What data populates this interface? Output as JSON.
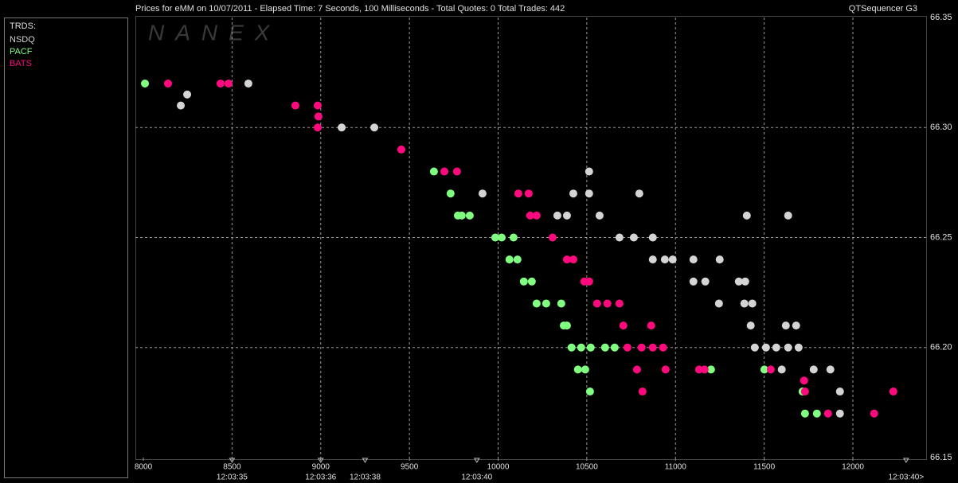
{
  "chart_data": {
    "type": "scatter",
    "title": "Prices for  eMM  on  10/07/2011  -  Elapsed Time: 7 Seconds, 100 Milliseconds  -  Total Quotes: 0  Total Trades: 442",
    "subtitle": "QTSequencer G3",
    "watermark": "NANEX",
    "legend_title": "TRDS:",
    "xlim": [
      7955,
      12413
    ],
    "xticks": [
      8000,
      8500,
      9000,
      9500,
      10000,
      10500,
      11000,
      11500,
      12000
    ],
    "ylim": [
      66.15,
      66.35
    ],
    "yticks": [
      66.15,
      {
        "value": 66.2,
        "label": "66.20"
      },
      66.25,
      {
        "value": 66.3,
        "label": "66.30"
      },
      66.35
    ],
    "grid": true,
    "time_marks": [
      {
        "value": 8500,
        "label": "12:03:35"
      },
      {
        "value": 9000,
        "label": "12:03:36"
      },
      {
        "value": 9250,
        "label": "12:03:38"
      },
      {
        "value": 9880,
        "label": "12:03:40"
      },
      {
        "value": 12300,
        "label": "12:03:40>"
      }
    ],
    "series": [
      {
        "name": "NSDQ",
        "color": "#d4d4d4",
        "x": [
          8211,
          8247,
          8592,
          9118,
          9302,
          9912,
          10424,
          10513,
          10796,
          10513,
          10334,
          10388,
          10572,
          11402,
          11635,
          10684,
          10765,
          10872,
          10872,
          10940,
          10984,
          11101,
          11249,
          11101,
          11168,
          11357,
          11393,
          11245,
          11388,
          11433,
          11424,
          11622,
          11680,
          11447,
          11510,
          11568,
          11635,
          11694,
          11599,
          11779,
          11873,
          11927,
          11927
        ],
        "values": [
          66.31,
          66.315,
          66.32,
          66.3,
          66.3,
          66.27,
          66.27,
          66.27,
          66.27,
          66.28,
          66.26,
          66.26,
          66.26,
          66.26,
          66.26,
          66.25,
          66.25,
          66.25,
          66.24,
          66.24,
          66.24,
          66.24,
          66.24,
          66.23,
          66.23,
          66.23,
          66.23,
          66.22,
          66.22,
          66.22,
          66.21,
          66.21,
          66.21,
          66.2,
          66.2,
          66.2,
          66.2,
          66.2,
          66.19,
          66.19,
          66.19,
          66.18,
          66.17
        ]
      },
      {
        "name": "PACF",
        "color": "#80ff80",
        "x": [
          8009,
          9638,
          9732,
          9773,
          9795,
          9840,
          9984,
          10020,
          10087,
          10064,
          10109,
          10145,
          10190,
          10217,
          10271,
          10356,
          10370,
          10388,
          10414,
          10468,
          10522,
          10603,
          10657,
          10450,
          10491,
          10518,
          11200,
          11501,
          11716,
          11730,
          11797
        ],
        "values": [
          66.32,
          66.28,
          66.27,
          66.26,
          66.26,
          66.26,
          66.25,
          66.25,
          66.25,
          66.24,
          66.24,
          66.23,
          66.23,
          66.22,
          66.22,
          66.22,
          66.21,
          66.21,
          66.2,
          66.2,
          66.2,
          66.2,
          66.2,
          66.19,
          66.19,
          66.18,
          66.19,
          66.19,
          66.18,
          66.17,
          66.17
        ]
      },
      {
        "name": "BATS",
        "color": "#ff0a7e",
        "x": [
          8139,
          8435,
          8480,
          8857,
          8983,
          8987,
          8983,
          9454,
          9697,
          9768,
          10114,
          10172,
          10181,
          10217,
          10307,
          10388,
          10424,
          10486,
          10513,
          10558,
          10616,
          10684,
          10706,
          10863,
          10729,
          10809,
          10872,
          10930,
          10783,
          10944,
          11133,
          11164,
          10814,
          11537,
          11725,
          11730,
          11860,
          12120,
          12228
        ],
        "values": [
          66.32,
          66.32,
          66.32,
          66.31,
          66.31,
          66.305,
          66.3,
          66.29,
          66.28,
          66.28,
          66.27,
          66.27,
          66.26,
          66.26,
          66.25,
          66.24,
          66.24,
          66.23,
          66.23,
          66.22,
          66.22,
          66.22,
          66.21,
          66.21,
          66.2,
          66.2,
          66.2,
          66.2,
          66.19,
          66.19,
          66.19,
          66.19,
          66.18,
          66.19,
          66.185,
          66.18,
          66.17,
          66.17,
          66.18
        ]
      }
    ]
  }
}
